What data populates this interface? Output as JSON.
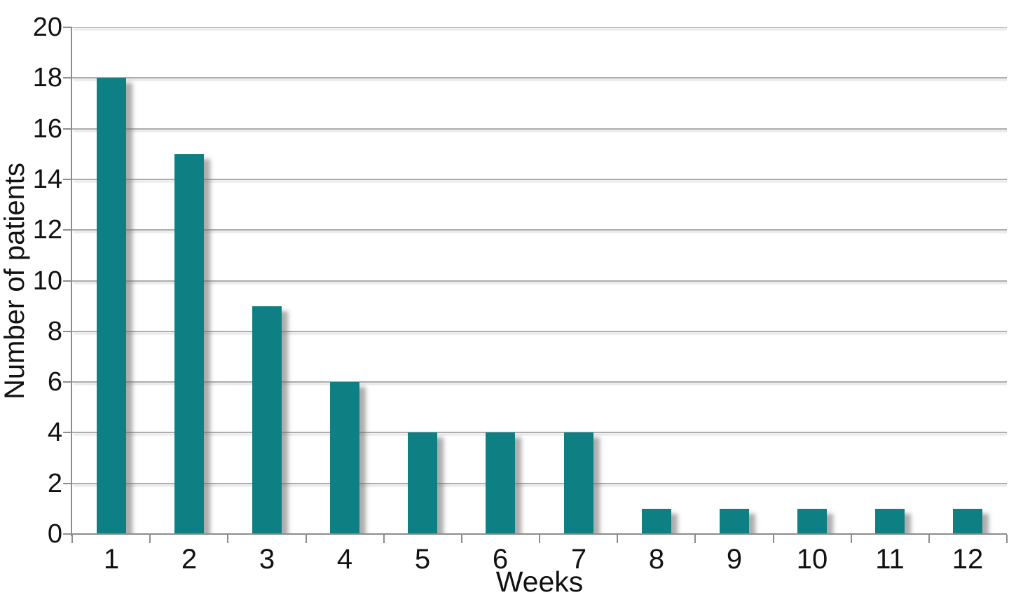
{
  "chart_data": {
    "type": "bar",
    "title": "",
    "categories": [
      "1",
      "2",
      "3",
      "4",
      "5",
      "6",
      "7",
      "8",
      "9",
      "10",
      "11",
      "12"
    ],
    "values": [
      18,
      15,
      9,
      6,
      4,
      4,
      4,
      1,
      1,
      1,
      1,
      1
    ],
    "xlabel": "Weeks",
    "ylabel": "Number of patients",
    "ylim": [
      0,
      20
    ],
    "ytick_step": 2,
    "yticks": [
      0,
      2,
      4,
      6,
      8,
      10,
      12,
      14,
      16,
      18,
      20
    ],
    "grid": "horizontal",
    "legend": "none",
    "colors": {
      "bar": "#0E7F82",
      "gridline": "#ACACAC",
      "axis": "#8C8C8C",
      "text": "#121212",
      "background": "#FFFFFF"
    }
  }
}
